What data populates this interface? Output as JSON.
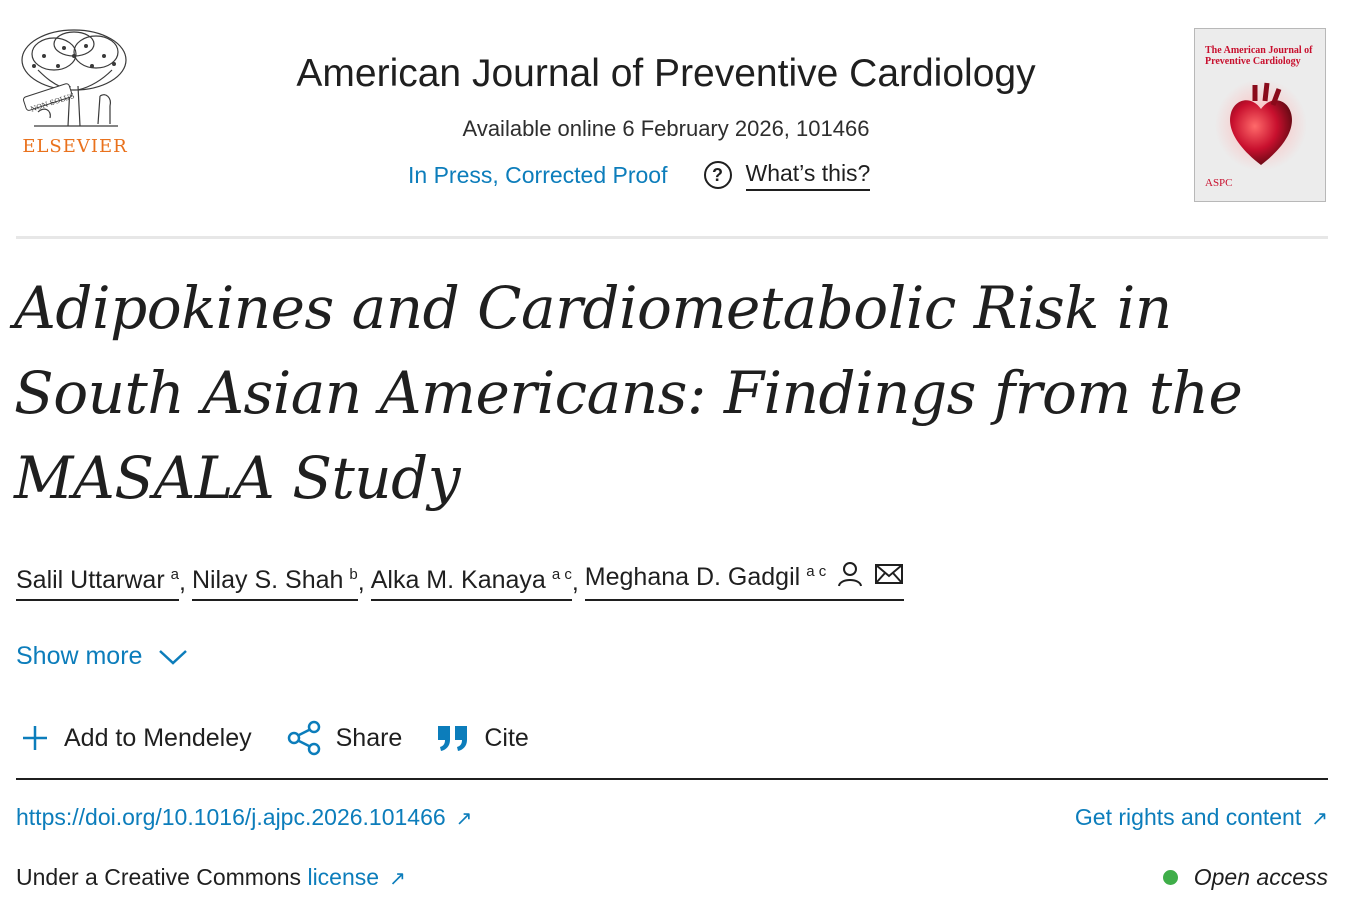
{
  "header": {
    "publisher_logo_text": "NON SOLUS",
    "publisher_name": "ELSEVIER",
    "journal_title": "American Journal of Preventive Cardiology",
    "available_online": "Available online 6 February 2026, 101466",
    "status_link": "In Press, Corrected Proof",
    "help_icon": "question-circle-icon",
    "whats_this": "What’s this?",
    "cover": {
      "title": "The American Journal of Preventive Cardiology",
      "society": "ASPC",
      "image": "heart"
    }
  },
  "article": {
    "title": "Adipokines and Cardiometabolic Risk in South Asian Americans: Findings from the MASALA Study",
    "authors": [
      {
        "name": "Salil Uttarwar",
        "affiliations": "a"
      },
      {
        "name": "Nilay S. Shah",
        "affiliations": "b"
      },
      {
        "name": "Alka M. Kanaya",
        "affiliations": "a c"
      },
      {
        "name": "Meghana D. Gadgil",
        "affiliations": "a c"
      }
    ],
    "author_separator": ",",
    "corresponding_icons": [
      "person-icon",
      "envelope-icon"
    ],
    "show_more": "Show more"
  },
  "actions": {
    "add_to_mendeley": "Add to Mendeley",
    "share": "Share",
    "cite": "Cite"
  },
  "links": {
    "doi": "https://doi.org/10.1016/j.ajpc.2026.101466",
    "rights": "Get rights and content",
    "external_arrow": "↗",
    "license_prefix": "Under a Creative Commons",
    "license_link": "license",
    "open_access": "Open access"
  },
  "colors": {
    "link": "#0c7dbb",
    "publisher": "#e9711c",
    "open_access_dot": "#3fae49",
    "text": "#1f1f1f"
  }
}
